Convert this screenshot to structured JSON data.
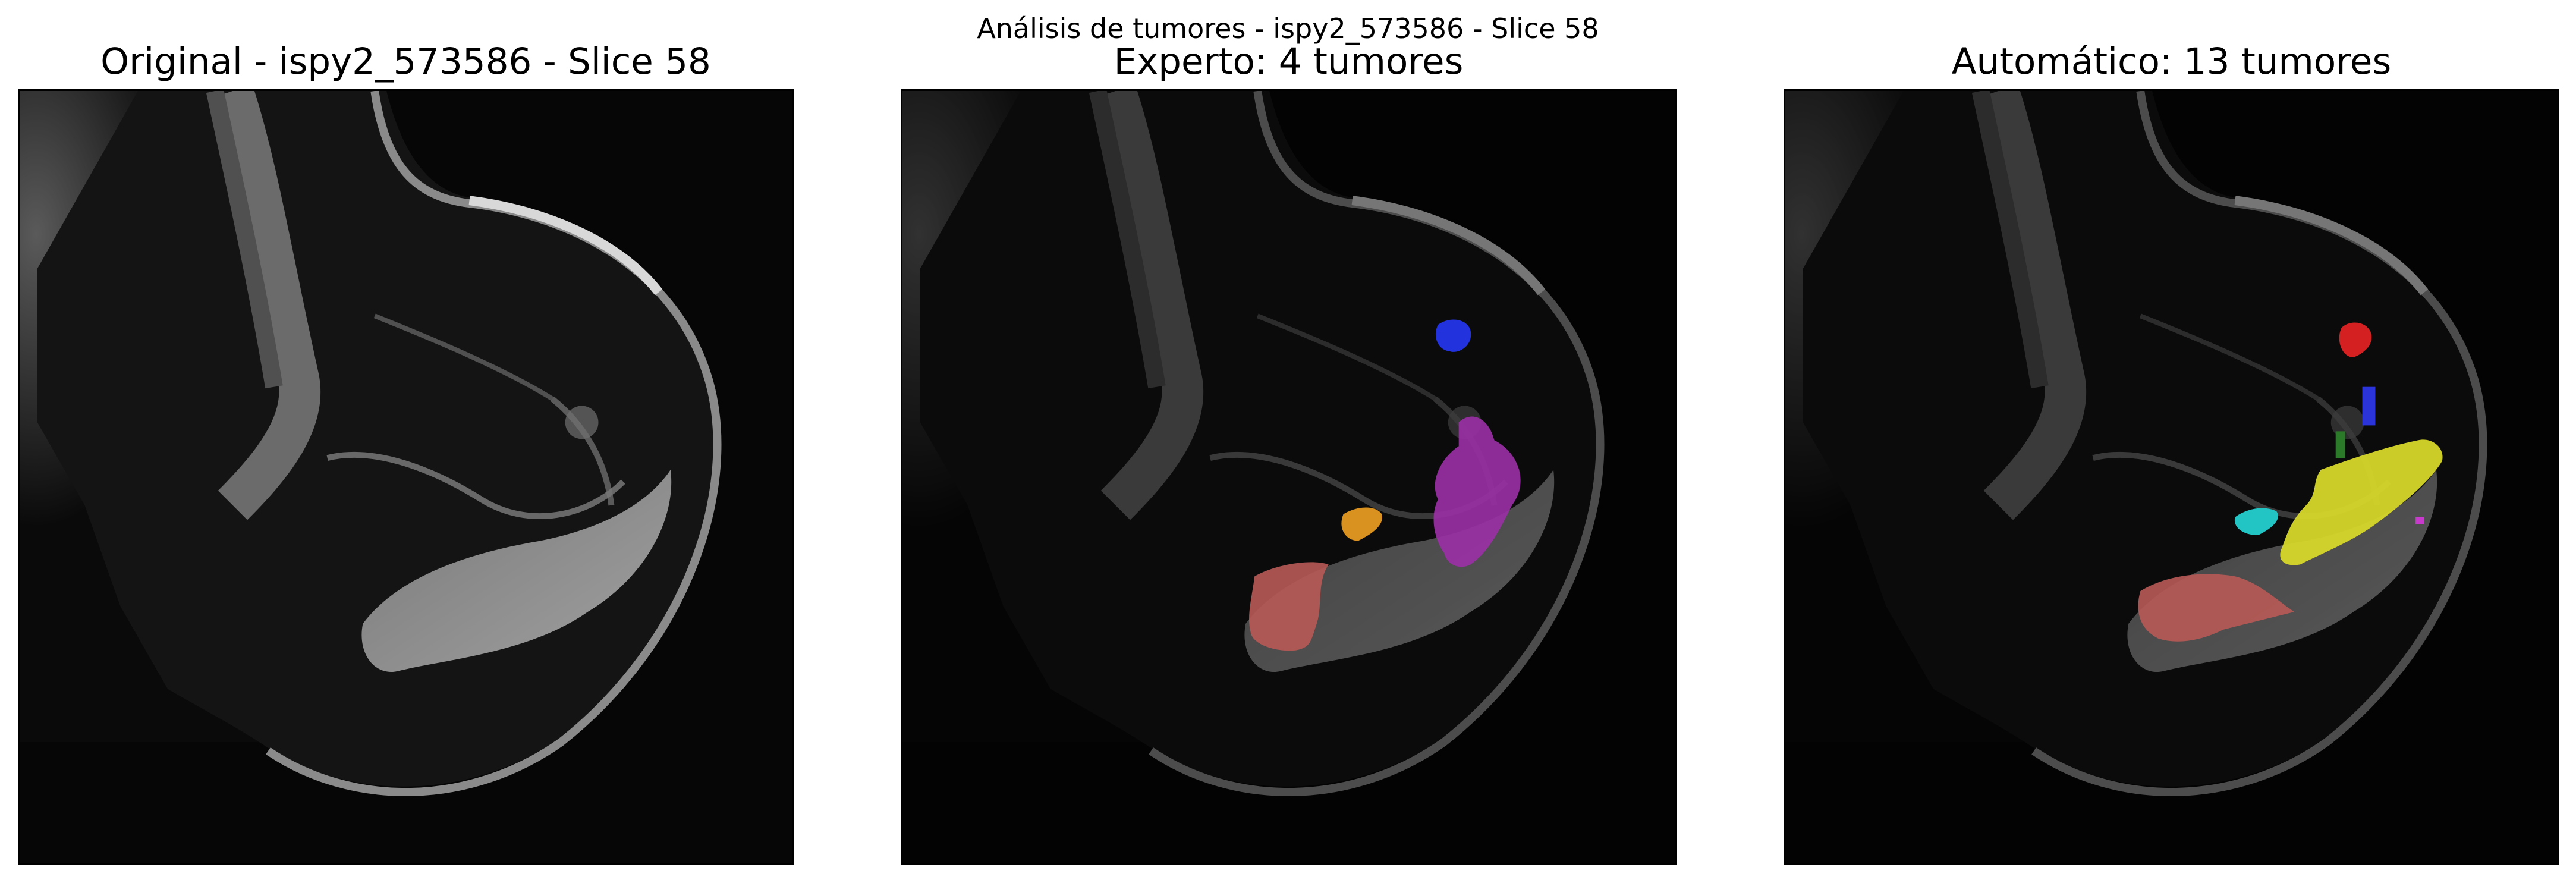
{
  "figure": {
    "suptitle": "Análisis de tumores - ispy2_573586 - Slice 58"
  },
  "panels": [
    {
      "title": "Original - ispy2_573586 - Slice 58"
    },
    {
      "title": "Experto: 4 tumores"
    },
    {
      "title": "Automático: 13 tumores"
    }
  ],
  "colors": {
    "expert_blue": "#2233dd",
    "expert_purple": "#9b2fa6",
    "expert_orange": "#d9921f",
    "expert_salmon": "#b85a55",
    "auto_red": "#d42020",
    "auto_blue": "#2a34d8",
    "auto_green": "#2a7a2a",
    "auto_cyan": "#22c4c4",
    "auto_yellow": "#d7d72a",
    "auto_magenta": "#c83acb",
    "auto_salmon": "#b85a55"
  },
  "segment_icons": [
    "mri-breast-slice",
    "tumor-mask-overlay"
  ]
}
